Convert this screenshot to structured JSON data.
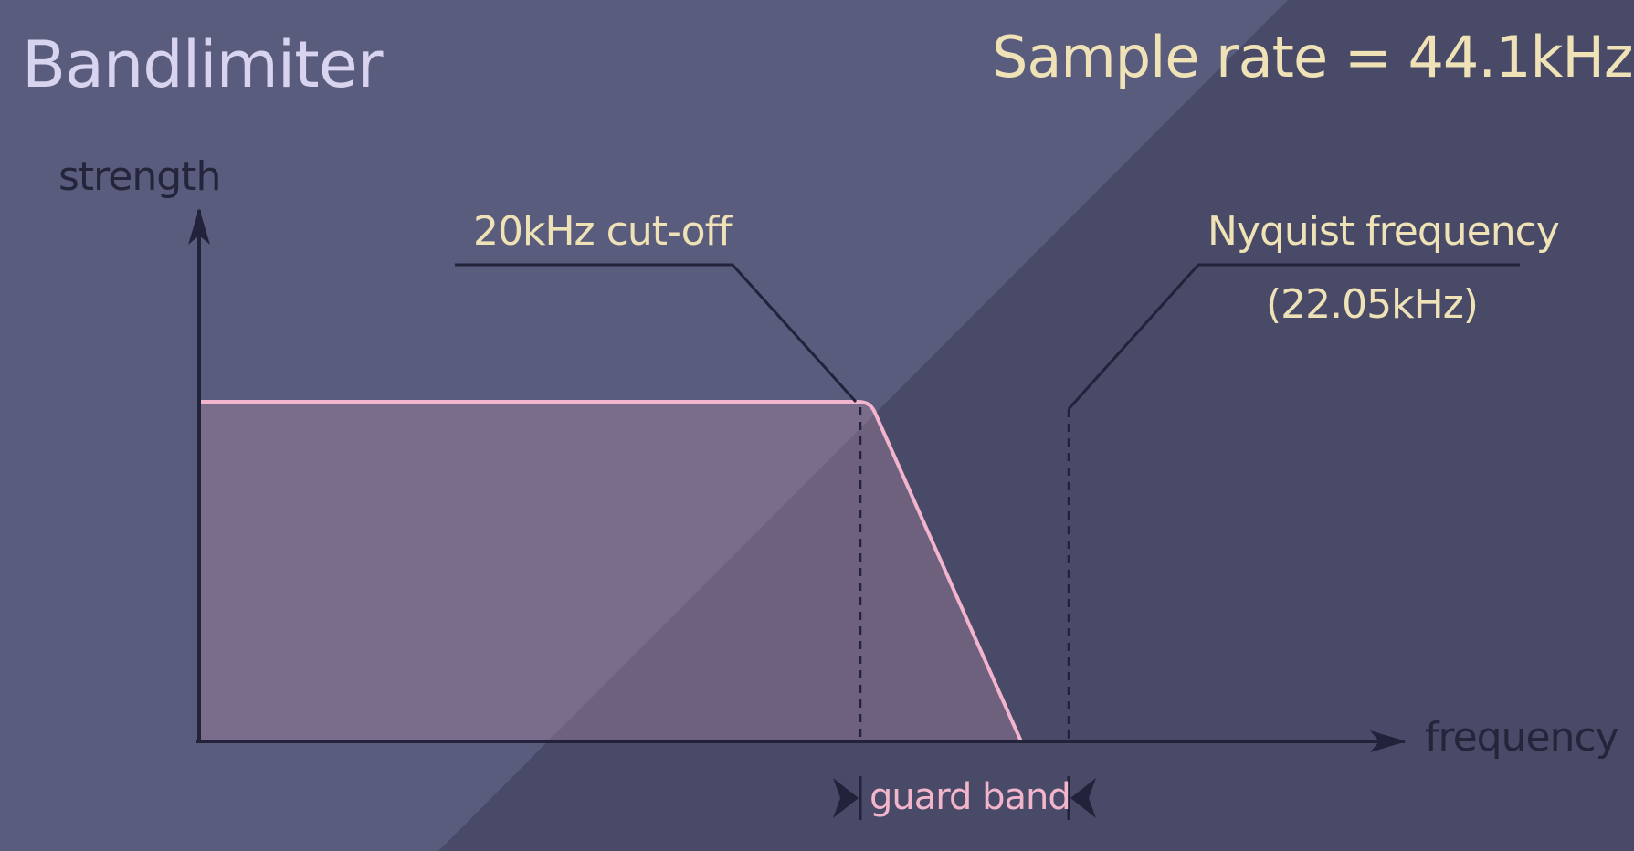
{
  "title": "Bandlimiter",
  "sample_rate": "Sample rate = 44.1kHz",
  "labels": {
    "y_axis": "strength",
    "x_axis": "frequency",
    "cutoff": "20kHz cut-off",
    "nyquist_line1": "Nyquist frequency",
    "nyquist_line2": "(22.05kHz)",
    "guard_band": "guard band"
  },
  "colors": {
    "background": "#494a67",
    "background_light": "#5a5c7d",
    "filter_curve": "#f3b4cd",
    "filter_fill": "#bf92aa",
    "axis": "#22223a",
    "text_light": "#eee2b6",
    "title_text": "#d8d4ef"
  }
}
